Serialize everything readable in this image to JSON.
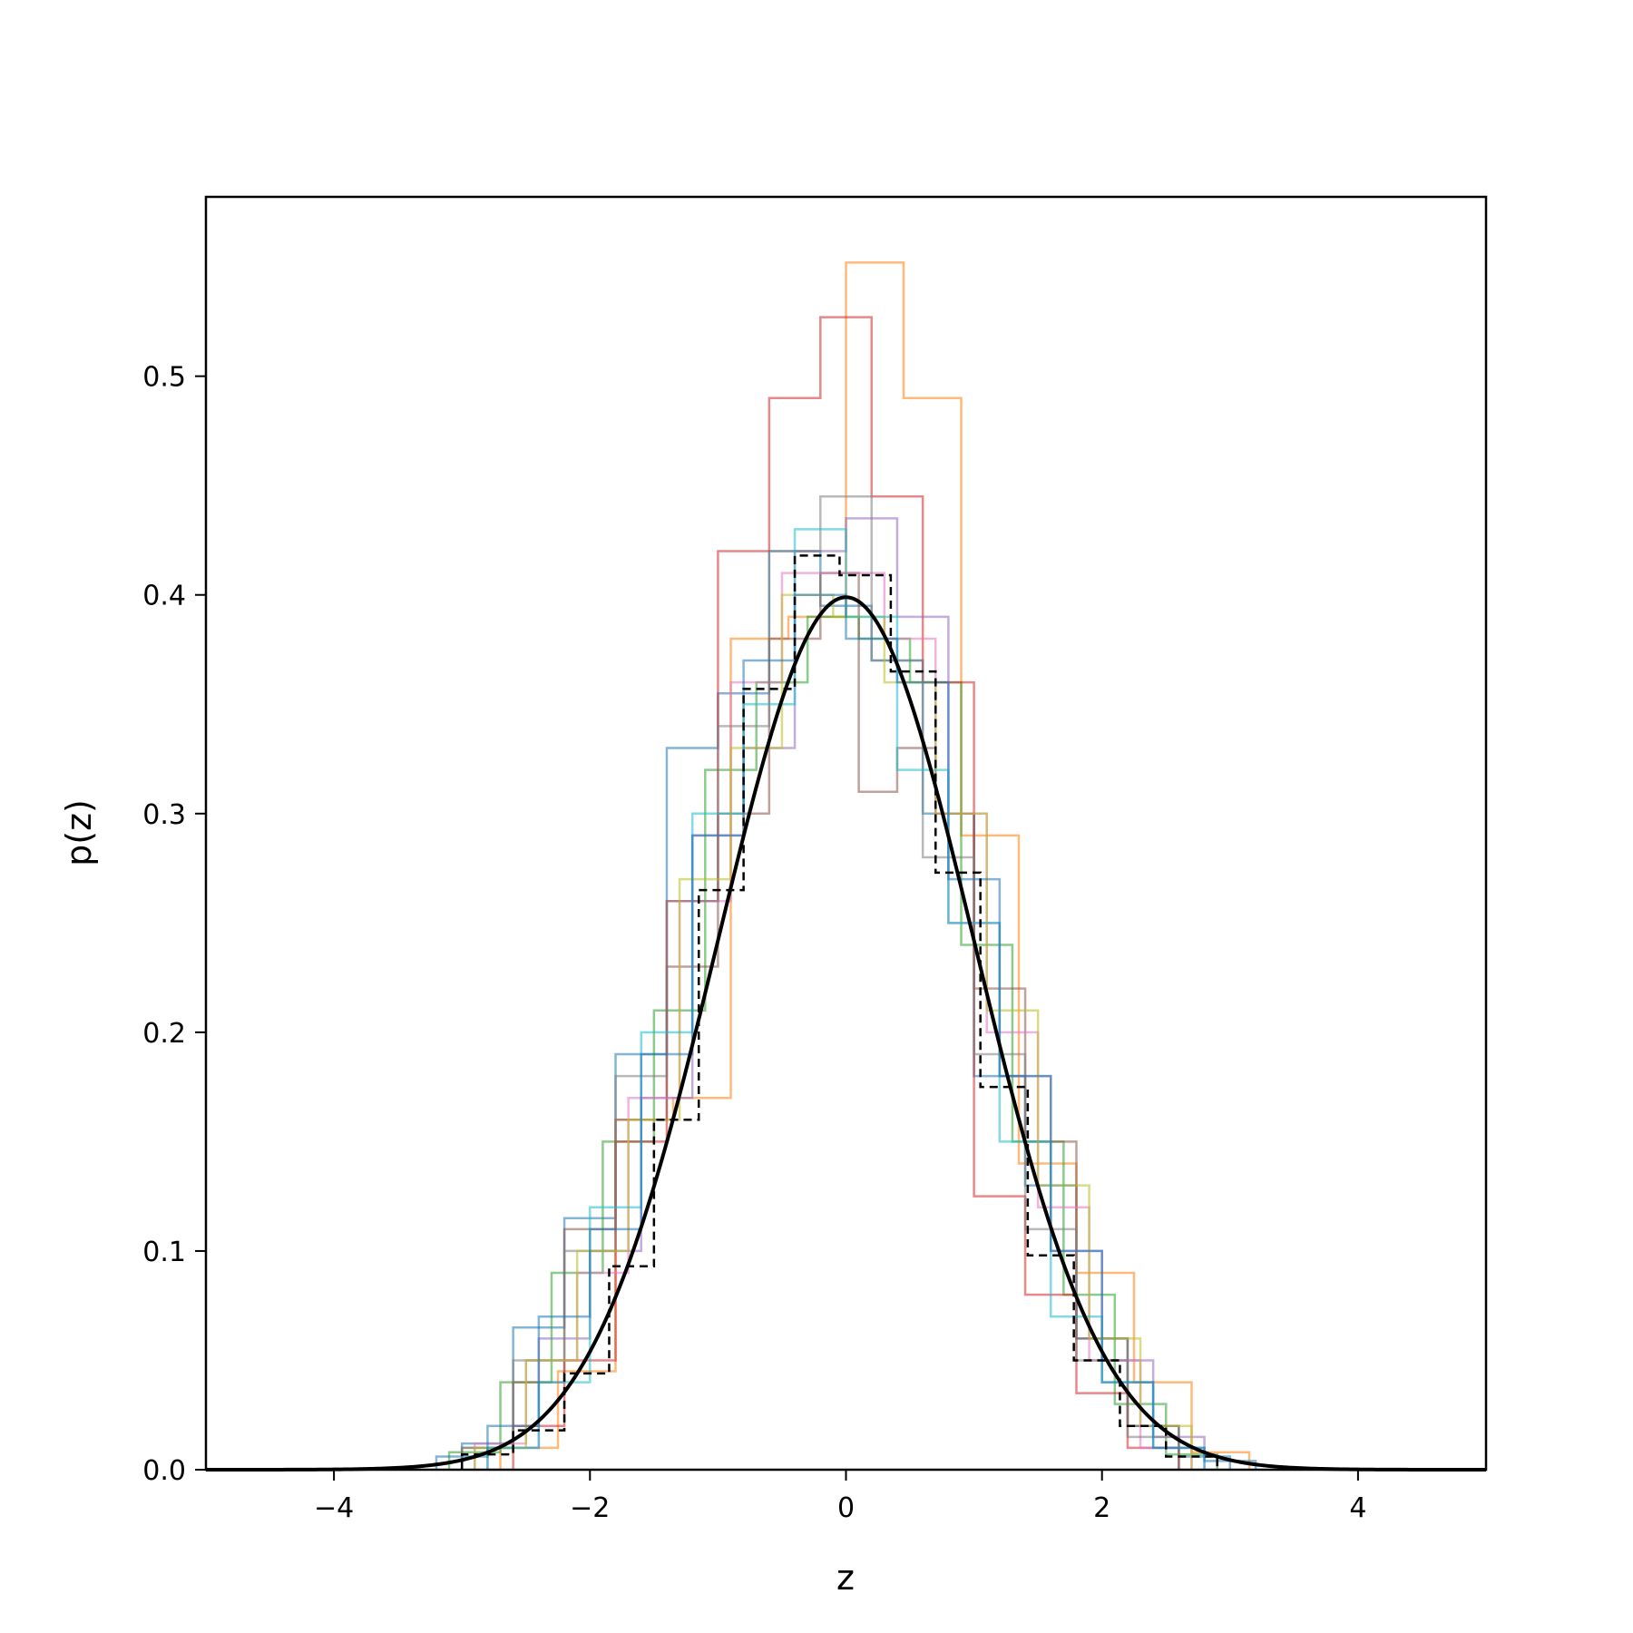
{
  "chart_data": {
    "type": "line",
    "title": "",
    "xlabel": "z",
    "ylabel": "p(z)",
    "xlim": [
      -5,
      5
    ],
    "ylim": [
      0,
      0.582
    ],
    "xticks": [
      -4,
      -2,
      0,
      2,
      4
    ],
    "xtick_labels": [
      "−4",
      "−2",
      "0",
      "2",
      "4"
    ],
    "yticks": [
      0.0,
      0.1,
      0.2,
      0.3,
      0.4,
      0.5
    ],
    "ytick_labels": [
      "0.0",
      "0.1",
      "0.2",
      "0.3",
      "0.4",
      "0.5"
    ],
    "grid": false,
    "legend": "none",
    "step_series": [
      {
        "color": "#1f77b4",
        "edges": [
          -3.0,
          -2.6,
          -2.2,
          -1.8,
          -1.4,
          -1.0,
          -0.6,
          -0.2,
          0.2,
          0.6,
          1.0,
          1.4,
          1.8,
          2.2,
          2.6,
          3.0
        ],
        "values": [
          0.012,
          0.065,
          0.115,
          0.19,
          0.33,
          0.355,
          0.42,
          0.395,
          0.37,
          0.3,
          0.18,
          0.13,
          0.06,
          0.02,
          0.006
        ]
      },
      {
        "color": "#ff7f0e",
        "edges": [
          -2.7,
          -2.25,
          -1.8,
          -1.35,
          -0.9,
          -0.45,
          0.0,
          0.45,
          0.9,
          1.35,
          1.8,
          2.25,
          2.7,
          3.15
        ],
        "values": [
          0.01,
          0.045,
          0.16,
          0.17,
          0.38,
          0.39,
          0.552,
          0.49,
          0.29,
          0.14,
          0.09,
          0.04,
          0.008
        ]
      },
      {
        "color": "#2ca02c",
        "edges": [
          -3.1,
          -2.7,
          -2.3,
          -1.9,
          -1.5,
          -1.1,
          -0.7,
          -0.3,
          0.1,
          0.5,
          0.9,
          1.3,
          1.7,
          2.1,
          2.5,
          2.9
        ],
        "values": [
          0.008,
          0.04,
          0.09,
          0.15,
          0.21,
          0.32,
          0.36,
          0.39,
          0.38,
          0.36,
          0.24,
          0.15,
          0.08,
          0.03,
          0.007
        ]
      },
      {
        "color": "#d62728",
        "edges": [
          -2.6,
          -2.2,
          -1.8,
          -1.4,
          -1.0,
          -0.6,
          -0.2,
          0.2,
          0.6,
          1.0,
          1.4,
          1.8,
          2.2,
          2.6
        ],
        "values": [
          0.02,
          0.05,
          0.15,
          0.26,
          0.42,
          0.49,
          0.527,
          0.445,
          0.36,
          0.125,
          0.08,
          0.035,
          0.01
        ]
      },
      {
        "color": "#9467bd",
        "edges": [
          -2.8,
          -2.4,
          -2.0,
          -1.6,
          -1.2,
          -0.8,
          -0.4,
          0.0,
          0.4,
          0.8,
          1.2,
          1.6,
          2.0,
          2.4,
          2.8
        ],
        "values": [
          0.01,
          0.06,
          0.1,
          0.17,
          0.29,
          0.33,
          0.42,
          0.435,
          0.39,
          0.25,
          0.18,
          0.1,
          0.05,
          0.015
        ]
      },
      {
        "color": "#8c564b",
        "edges": [
          -3.0,
          -2.6,
          -2.2,
          -1.8,
          -1.4,
          -1.0,
          -0.6,
          -0.2,
          0.1,
          0.4,
          0.7,
          1.0,
          1.4,
          1.8,
          2.2,
          2.6
        ],
        "values": [
          0.01,
          0.04,
          0.11,
          0.16,
          0.23,
          0.3,
          0.38,
          0.41,
          0.31,
          0.33,
          0.3,
          0.22,
          0.15,
          0.06,
          0.02
        ]
      },
      {
        "color": "#e377c2",
        "edges": [
          -2.9,
          -2.5,
          -2.1,
          -1.7,
          -1.3,
          -0.9,
          -0.5,
          -0.1,
          0.3,
          0.7,
          1.1,
          1.5,
          1.9,
          2.3,
          2.7
        ],
        "values": [
          0.012,
          0.05,
          0.09,
          0.17,
          0.26,
          0.36,
          0.41,
          0.41,
          0.38,
          0.3,
          0.2,
          0.12,
          0.05,
          0.01
        ]
      },
      {
        "color": "#7f7f7f",
        "edges": [
          -3.0,
          -2.6,
          -2.2,
          -1.8,
          -1.4,
          -1.0,
          -0.6,
          -0.2,
          0.2,
          0.6,
          1.0,
          1.4,
          1.8,
          2.2,
          2.6
        ],
        "values": [
          0.01,
          0.05,
          0.1,
          0.18,
          0.26,
          0.34,
          0.42,
          0.445,
          0.37,
          0.28,
          0.19,
          0.11,
          0.05,
          0.015
        ]
      },
      {
        "color": "#bcbd22",
        "edges": [
          -2.9,
          -2.5,
          -2.1,
          -1.7,
          -1.3,
          -0.9,
          -0.5,
          -0.1,
          0.3,
          0.7,
          1.1,
          1.5,
          1.9,
          2.3,
          2.7
        ],
        "values": [
          0.01,
          0.05,
          0.1,
          0.16,
          0.27,
          0.33,
          0.4,
          0.39,
          0.36,
          0.3,
          0.21,
          0.13,
          0.06,
          0.02
        ]
      },
      {
        "color": "#17becf",
        "edges": [
          -2.8,
          -2.4,
          -2.0,
          -1.6,
          -1.2,
          -0.8,
          -0.4,
          0.0,
          0.4,
          0.8,
          1.2,
          1.6,
          2.0,
          2.4,
          2.8
        ],
        "values": [
          0.01,
          0.04,
          0.12,
          0.2,
          0.3,
          0.35,
          0.43,
          0.39,
          0.32,
          0.25,
          0.15,
          0.07,
          0.04,
          0.01
        ]
      },
      {
        "color": "#1f77b4",
        "edges": [
          -3.2,
          -2.8,
          -2.4,
          -2.0,
          -1.6,
          -1.2,
          -0.8,
          -0.4,
          0.0,
          0.4,
          0.8,
          1.2,
          1.6,
          2.0,
          2.4,
          2.8,
          3.2
        ],
        "values": [
          0.006,
          0.02,
          0.07,
          0.11,
          0.19,
          0.29,
          0.37,
          0.4,
          0.38,
          0.36,
          0.27,
          0.18,
          0.1,
          0.04,
          0.01,
          0.004
        ]
      },
      {
        "color": "#000000",
        "dashed": true,
        "edges": [
          -3.0,
          -2.6,
          -2.2,
          -1.85,
          -1.5,
          -1.15,
          -0.8,
          -0.4,
          -0.05,
          0.35,
          0.7,
          1.05,
          1.42,
          1.78,
          2.14,
          2.5,
          2.9
        ],
        "values": [
          0.007,
          0.018,
          0.044,
          0.093,
          0.16,
          0.265,
          0.357,
          0.418,
          0.409,
          0.365,
          0.273,
          0.175,
          0.098,
          0.05,
          0.02,
          0.006
        ]
      }
    ],
    "curve": {
      "color": "#000000",
      "description_of_values": "standard normal pdf",
      "mean": 0,
      "std": 1
    }
  }
}
